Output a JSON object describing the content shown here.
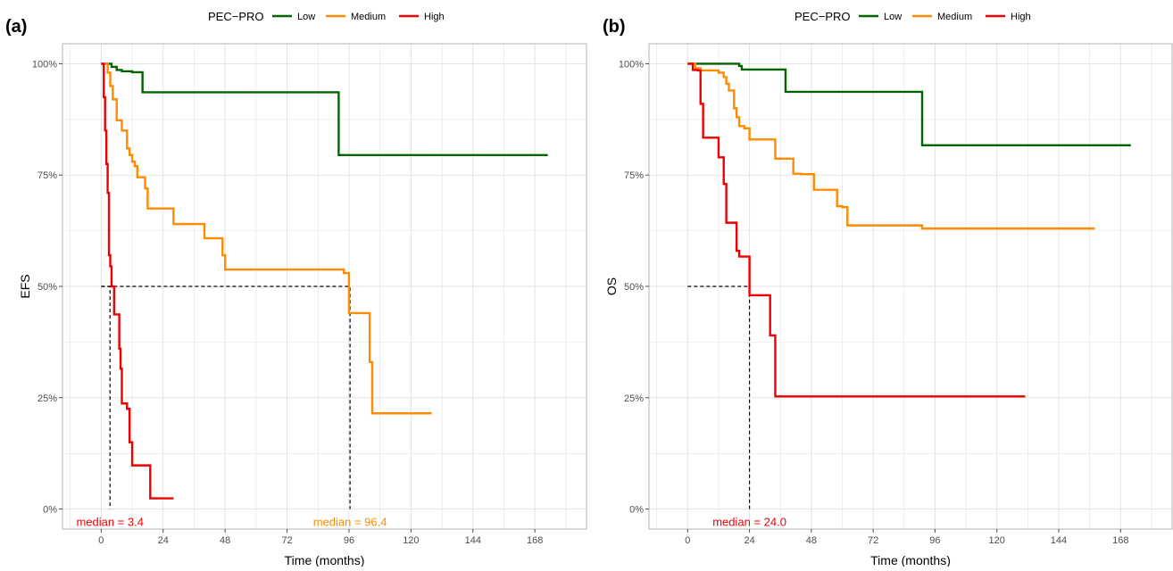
{
  "colors": {
    "low": "#006400",
    "medium": "#FF8C00",
    "high": "#EE0000",
    "grid": "#E3E3E3",
    "panel_border": "#B3B3B3",
    "axis_text": "#4D4D4D",
    "reference": "#000000"
  },
  "chart_data": [
    {
      "type": "line",
      "step": true,
      "panel_tag": "(a)",
      "xlabel": "Time (months)",
      "ylabel": "EFS",
      "xlim": [
        -15,
        188
      ],
      "ylim": [
        -0.045,
        1.045
      ],
      "x_ticks": [
        0,
        24,
        48,
        72,
        96,
        120,
        144,
        168
      ],
      "y_ticks": [
        0,
        0.25,
        0.5,
        0.75,
        1.0
      ],
      "y_tick_labels": [
        "0%",
        "25%",
        "50%",
        "75%",
        "100%"
      ],
      "grid": true,
      "legend": {
        "title": "PEC−PRO",
        "position": "top",
        "entries": [
          "Low",
          "Medium",
          "High"
        ]
      },
      "series": [
        {
          "name": "Low",
          "x": [
            0,
            4,
            6,
            8,
            12,
            16,
            92,
            173
          ],
          "y": [
            1.0,
            0.993,
            0.986,
            0.983,
            0.981,
            0.936,
            0.795,
            0.795
          ]
        },
        {
          "name": "Medium",
          "x": [
            0,
            2.5,
            3.5,
            4.5,
            6,
            8,
            10,
            11,
            12,
            13,
            14,
            17,
            18,
            28,
            40,
            47,
            48,
            94,
            96,
            104,
            105,
            128
          ],
          "y": [
            1.0,
            0.98,
            0.95,
            0.92,
            0.873,
            0.85,
            0.81,
            0.795,
            0.78,
            0.77,
            0.745,
            0.72,
            0.675,
            0.64,
            0.608,
            0.57,
            0.538,
            0.53,
            0.44,
            0.33,
            0.215,
            0.215
          ]
        },
        {
          "name": "High",
          "x": [
            0,
            1,
            1.5,
            2,
            2.5,
            3,
            3.5,
            4,
            5,
            7,
            7.5,
            8,
            10,
            11,
            12,
            19,
            28
          ],
          "y": [
            1.0,
            0.925,
            0.85,
            0.775,
            0.71,
            0.57,
            0.545,
            0.5,
            0.437,
            0.36,
            0.315,
            0.237,
            0.225,
            0.15,
            0.098,
            0.024,
            0.024
          ]
        }
      ],
      "median_lines": [
        {
          "series": "High",
          "x": 3.4,
          "y": 0.5
        },
        {
          "series": "Medium",
          "x": 96.4,
          "y": 0.5
        }
      ],
      "annotations": [
        {
          "text": "median = 3.4",
          "series": "High",
          "x": 3.4,
          "y": -0.03
        },
        {
          "text": "median = 96.4",
          "series": "Medium",
          "x": 96.4,
          "y": -0.03
        }
      ]
    },
    {
      "type": "line",
      "step": true,
      "panel_tag": "(b)",
      "xlabel": "Time (months)",
      "ylabel": "OS",
      "xlim": [
        -15,
        188
      ],
      "ylim": [
        -0.045,
        1.045
      ],
      "x_ticks": [
        0,
        24,
        48,
        72,
        96,
        120,
        144,
        168
      ],
      "y_ticks": [
        0,
        0.25,
        0.5,
        0.75,
        1.0
      ],
      "y_tick_labels": [
        "0%",
        "25%",
        "50%",
        "75%",
        "100%"
      ],
      "grid": true,
      "legend": {
        "title": "PEC−PRO",
        "position": "top",
        "entries": [
          "Low",
          "Medium",
          "High"
        ]
      },
      "series": [
        {
          "name": "Low",
          "x": [
            0,
            20,
            21,
            38,
            91,
            172
          ],
          "y": [
            1.0,
            0.995,
            0.987,
            0.937,
            0.817,
            0.817
          ]
        },
        {
          "name": "Medium",
          "x": [
            0,
            3,
            5,
            12,
            14,
            15,
            16,
            18,
            19,
            20,
            22,
            24,
            34,
            41,
            44,
            49,
            58,
            60,
            62,
            90,
            91,
            158
          ],
          "y": [
            1.0,
            0.99,
            0.985,
            0.98,
            0.97,
            0.955,
            0.94,
            0.9,
            0.88,
            0.86,
            0.855,
            0.83,
            0.787,
            0.753,
            0.752,
            0.717,
            0.68,
            0.678,
            0.637,
            0.637,
            0.63,
            0.63
          ]
        },
        {
          "name": "High",
          "x": [
            0,
            2,
            4,
            5,
            6,
            12,
            14,
            15,
            19,
            20,
            22,
            24,
            32,
            33,
            34,
            131
          ],
          "y": [
            1.0,
            0.986,
            0.985,
            0.91,
            0.834,
            0.79,
            0.73,
            0.643,
            0.58,
            0.567,
            0.567,
            0.48,
            0.39,
            0.39,
            0.253,
            0.253
          ]
        }
      ],
      "median_lines": [
        {
          "series": "High",
          "x": 24.0,
          "y": 0.5
        }
      ],
      "annotations": [
        {
          "text": "median = 24.0",
          "series": "High",
          "x": 24.0,
          "y": -0.03
        }
      ]
    }
  ]
}
